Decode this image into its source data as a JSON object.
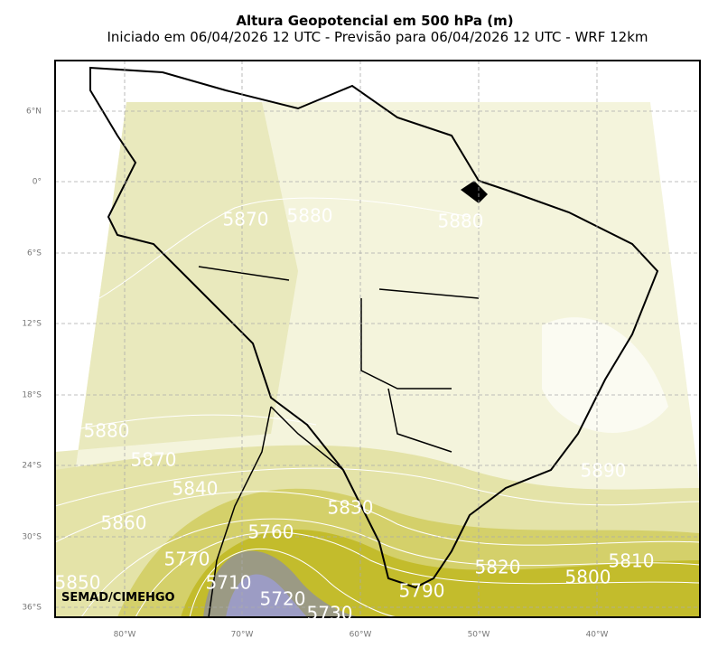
{
  "header": {
    "title": "Altura Geopotencial em 500 hPa (m)",
    "subtitle": "Iniciado em 06/04/2026 12 UTC - Previsão para 06/04/2026 12 UTC - WRF 12km"
  },
  "map": {
    "lat_labels": [
      "6°N",
      "0°",
      "6°S",
      "12°S",
      "18°S",
      "24°S",
      "30°S",
      "36°S"
    ],
    "lon_labels": [
      "80°W",
      "70°W",
      "60°W",
      "50°W",
      "40°W"
    ],
    "contour_labels": [
      "5870",
      "5880",
      "5880",
      "5880",
      "5870",
      "5840",
      "5830",
      "5860",
      "5760",
      "5770",
      "5710",
      "5720",
      "5730",
      "5850",
      "5790",
      "5820",
      "5800",
      "5810",
      "5890"
    ],
    "credit": "SEMAD/CIMEHGO"
  }
}
